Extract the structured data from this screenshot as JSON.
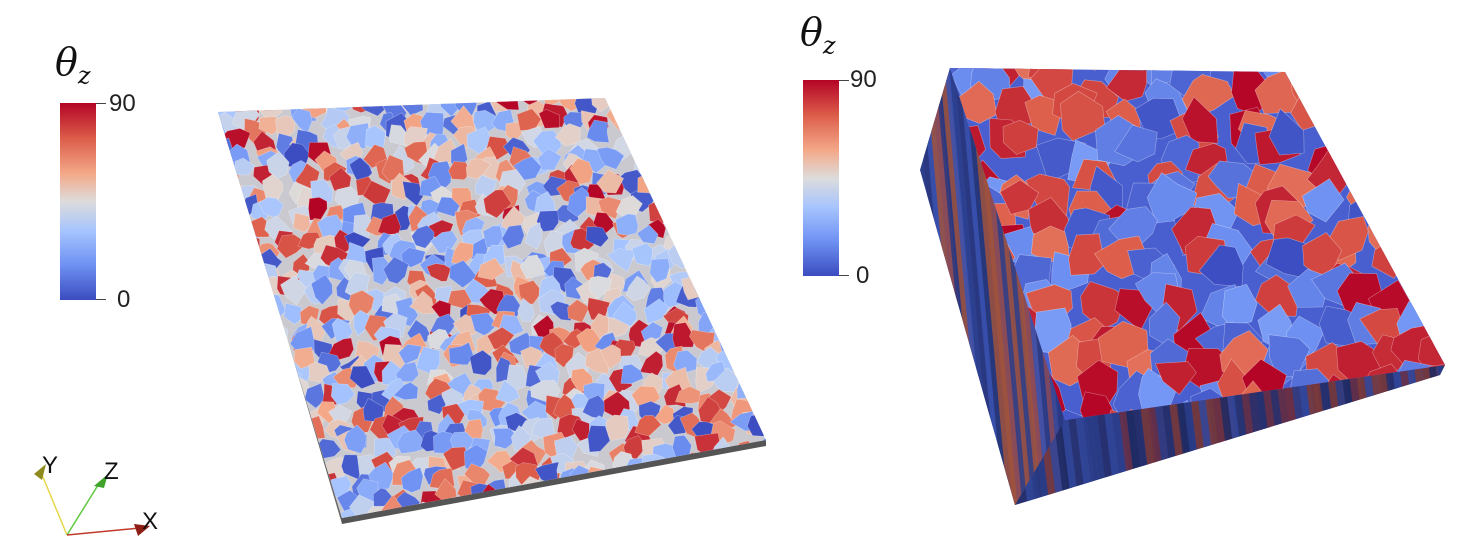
{
  "left_colorbar": {
    "symbol": "θ",
    "subscript": "z",
    "max_label": "90",
    "min_label": "0"
  },
  "right_colorbar": {
    "symbol": "θ",
    "subscript": "z",
    "max_label": "90",
    "min_label": "0"
  },
  "orientation_axes": {
    "x_label": "X",
    "y_label": "Y",
    "z_label": "Z"
  },
  "colors": {
    "colormap_high": "#b40426",
    "colormap_mid": "#dddcdc",
    "colormap_low": "#3b4cc0",
    "x_axis": "#c0392b",
    "y_axis": "#e6d84a",
    "z_axis": "#5ec840"
  }
}
